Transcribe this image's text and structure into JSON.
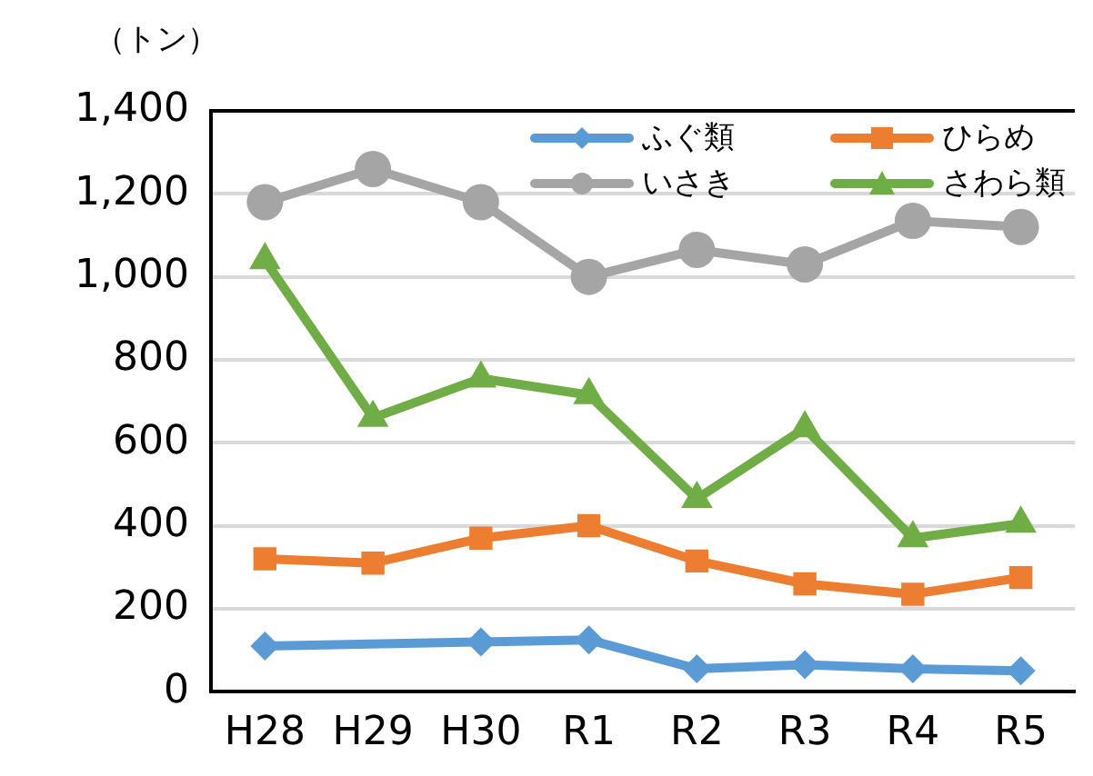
{
  "chart_data": {
    "type": "line",
    "ylabel": "（トン）",
    "categories": [
      "H28",
      "H29",
      "H30",
      "R1",
      "R2",
      "R3",
      "R4",
      "R5"
    ],
    "series": [
      {
        "name": "ふぐ類",
        "color": "#5b9bd5",
        "marker": "diamond",
        "values": [
          110,
          null,
          120,
          125,
          55,
          65,
          55,
          50
        ]
      },
      {
        "name": "ひらめ",
        "color": "#ed7d31",
        "marker": "square",
        "values": [
          320,
          310,
          370,
          400,
          315,
          260,
          235,
          275
        ]
      },
      {
        "name": "いさき",
        "color": "#a5a5a5",
        "marker": "circle",
        "values": [
          1180,
          1260,
          1180,
          1000,
          1065,
          1030,
          1135,
          1120
        ]
      },
      {
        "name": "さわら類",
        "color": "#70ad47",
        "marker": "triangle",
        "values": [
          1040,
          660,
          755,
          715,
          465,
          635,
          370,
          405
        ]
      }
    ],
    "ylim": [
      0,
      1400
    ],
    "yticks": [
      0,
      200,
      400,
      600,
      800,
      {
        "value": 1000,
        "label": "1,000"
      },
      {
        "value": 1200,
        "label": "1,200"
      },
      {
        "value": 1400,
        "label": "1,400"
      }
    ],
    "grid": "y",
    "legend": "top right"
  }
}
